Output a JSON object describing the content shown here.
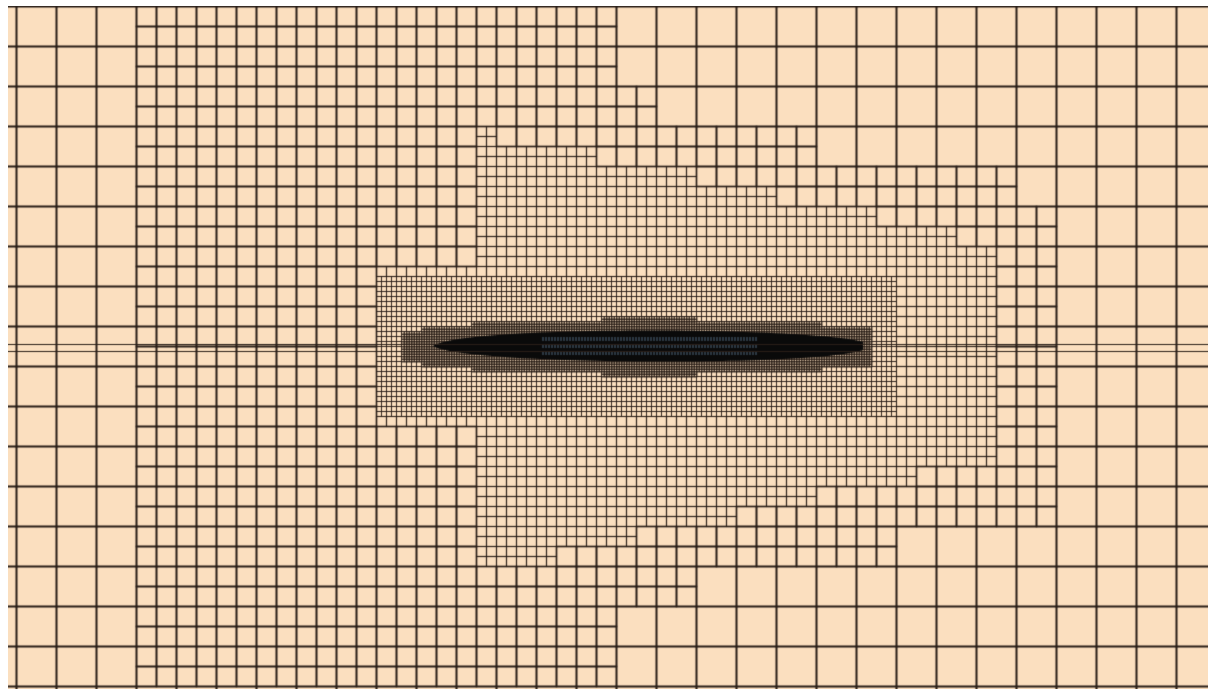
{
  "view": {
    "type": "adaptive-refinement-mesh",
    "background_color": "#ffffff",
    "cell_fill_color": "#fbdfbf",
    "grid_line_color": "#2a1f18",
    "hull_surface_color": "#0a0a0a",
    "hull_panel_color": "#5f7d9a",
    "refinement_levels": 5
  }
}
